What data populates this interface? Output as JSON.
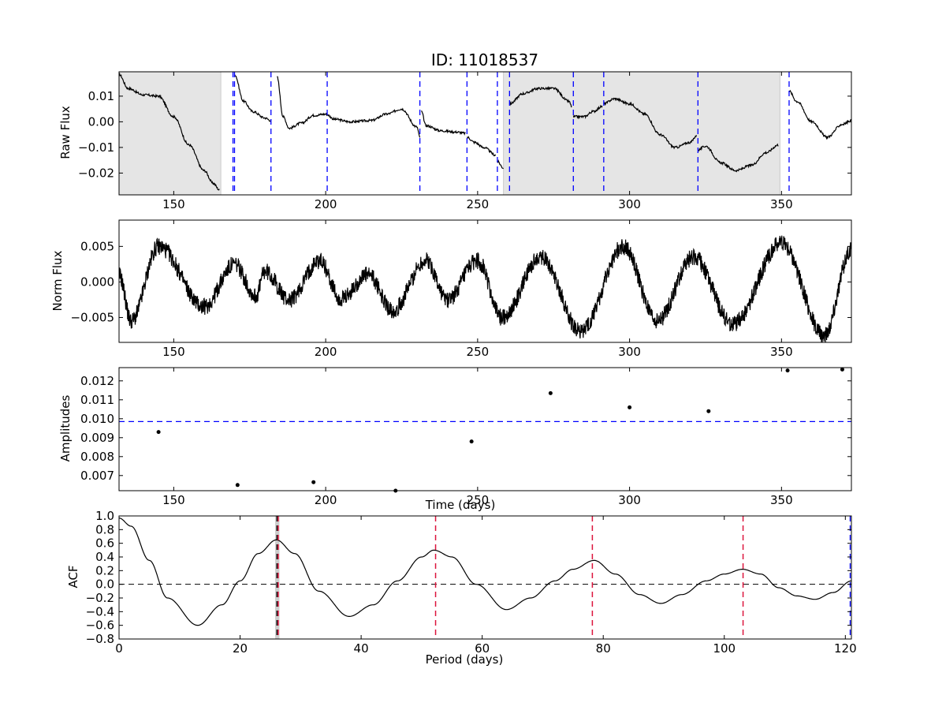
{
  "chart_data": [
    {
      "panel": "raw_flux",
      "type": "line",
      "title": "ID: 11018537",
      "ylabel": "Raw Flux",
      "xlabel": "",
      "xlim": [
        132,
        373
      ],
      "ylim": [
        -0.0285,
        0.0195
      ],
      "xticks": [
        150,
        200,
        250,
        300,
        350
      ],
      "yticks": [
        0.01,
        0.0,
        -0.01,
        -0.02
      ],
      "ytick_labels": [
        "0.01",
        "0.00",
        "−0.01",
        "−0.02"
      ],
      "shaded_spans": [
        [
          132,
          165.5
        ],
        [
          258.5,
          349.5
        ]
      ],
      "shade_color": "#e5e5e5",
      "vertical_lines": [
        169.5,
        170,
        182,
        200.5,
        231,
        246.5,
        256.5,
        260.5,
        281.5,
        291.5,
        322.5,
        352.5
      ],
      "vertical_line_color": "#0000ff",
      "segments": [
        {
          "x": [
            132,
            135,
            140,
            145,
            150,
            155,
            160,
            163,
            165
          ],
          "y": [
            0.0185,
            0.013,
            0.0105,
            0.01,
            0.002,
            -0.009,
            -0.019,
            -0.024,
            -0.0265
          ]
        },
        {
          "x": [
            170,
            173,
            176,
            180,
            182
          ],
          "y": [
            0.0185,
            0.008,
            0.004,
            0.0015,
            0.0005
          ]
        },
        {
          "x": [
            184,
            186,
            188,
            192,
            196,
            200,
            203,
            208,
            215,
            220,
            225,
            230,
            231
          ],
          "y": [
            0.0175,
            0.002,
            -0.0025,
            -0.0005,
            0.0025,
            0.003,
            0.001,
            -0.0,
            0.0005,
            0.003,
            0.005,
            -0.002,
            -0.006
          ]
        },
        {
          "x": [
            231.5,
            233,
            238,
            243,
            246
          ],
          "y": [
            0.004,
            -0.0015,
            -0.0035,
            -0.004,
            -0.0045
          ]
        },
        {
          "x": [
            246.5,
            249,
            252,
            256
          ],
          "y": [
            -0.006,
            -0.008,
            -0.01,
            -0.013
          ]
        },
        {
          "x": [
            256.5,
            258.5
          ],
          "y": [
            -0.0155,
            -0.018
          ]
        },
        {
          "x": [
            260.5,
            265,
            270,
            275,
            280,
            281
          ],
          "y": [
            0.007,
            0.011,
            0.013,
            0.013,
            0.008,
            0.006
          ]
        },
        {
          "x": [
            281.5,
            285,
            288,
            291
          ],
          "y": [
            0.002,
            0.002,
            0.004,
            0.006
          ]
        },
        {
          "x": [
            291.5,
            295,
            300,
            305,
            310,
            315,
            320,
            322
          ],
          "y": [
            0.007,
            0.009,
            0.007,
            0.003,
            -0.005,
            -0.01,
            -0.008,
            -0.0055
          ]
        },
        {
          "x": [
            322.5,
            325,
            330,
            335,
            340,
            345,
            349
          ],
          "y": [
            -0.011,
            -0.0095,
            -0.016,
            -0.019,
            -0.017,
            -0.012,
            -0.009
          ]
        },
        {
          "x": [
            352.5,
            355,
            360,
            365,
            370,
            373
          ],
          "y": [
            0.012,
            0.008,
            0.0,
            -0.006,
            -0.001,
            0.0005
          ]
        }
      ]
    },
    {
      "panel": "norm_flux",
      "type": "line",
      "ylabel": "Norm Flux",
      "xlabel": "",
      "xlim": [
        132,
        373
      ],
      "ylim": [
        -0.0085,
        0.0087
      ],
      "xticks": [
        150,
        200,
        250,
        300,
        350
      ],
      "yticks": [
        0.005,
        0.0,
        -0.005
      ],
      "ytick_labels": [
        "0.005",
        "0.000",
        "−0.005"
      ],
      "shape": {
        "minima_x": [
          136,
          160,
          177,
          188,
          205,
          222,
          240,
          258,
          284,
          309,
          334,
          364
        ],
        "minima_y": [
          -0.0055,
          -0.0035,
          -0.002,
          -0.0025,
          -0.0025,
          -0.004,
          -0.0025,
          -0.005,
          -0.007,
          -0.0055,
          -0.006,
          -0.0075
        ],
        "maxima_x": [
          145,
          170,
          180,
          198,
          214,
          233,
          250,
          271,
          298,
          321,
          350
        ],
        "maxima_y": [
          0.005,
          0.0025,
          0.0015,
          0.003,
          0.001,
          0.003,
          0.003,
          0.0035,
          0.005,
          0.0035,
          0.0055
        ],
        "noise_amplitude": 0.0012
      }
    },
    {
      "panel": "amplitudes",
      "type": "scatter",
      "ylabel": "Amplitudes",
      "xlabel": "Time (days)",
      "xlim": [
        132,
        373
      ],
      "ylim": [
        0.0062,
        0.0127
      ],
      "xticks": [
        150,
        200,
        250,
        300,
        350
      ],
      "yticks": [
        0.007,
        0.008,
        0.009,
        0.01,
        0.011,
        0.012
      ],
      "ytick_labels": [
        "0.007",
        "0.008",
        "0.009",
        "0.010",
        "0.011",
        "0.012"
      ],
      "x": [
        145,
        171,
        196,
        223,
        248,
        274,
        300,
        326,
        352,
        370
      ],
      "y": [
        0.0093,
        0.0065,
        0.00665,
        0.0062,
        0.0088,
        0.01135,
        0.0106,
        0.0104,
        0.01255,
        0.0126
      ],
      "hline": 0.00985,
      "hline_color": "#0000ff"
    },
    {
      "panel": "acf",
      "type": "line",
      "ylabel": "ACF",
      "xlabel": "Period (days)",
      "xlim": [
        0,
        121
      ],
      "ylim": [
        -0.8,
        1.0
      ],
      "xticks": [
        0,
        20,
        40,
        60,
        80,
        100,
        120
      ],
      "yticks": [
        1.0,
        0.8,
        0.6,
        0.4,
        0.2,
        0.0,
        -0.2,
        -0.4,
        -0.6,
        -0.8
      ],
      "ytick_labels": [
        "1.0",
        "0.8",
        "0.6",
        "0.4",
        "0.2",
        "0.0",
        "−0.2",
        "−0.4",
        "−0.6",
        "−0.8"
      ],
      "x": [
        0,
        2,
        5,
        8,
        13,
        17,
        20,
        23,
        26,
        29,
        33,
        38,
        42,
        46,
        50,
        52,
        55,
        59,
        64,
        68,
        72,
        75,
        78.5,
        82,
        86,
        89.5,
        93,
        97,
        100,
        103,
        106,
        109,
        112,
        115,
        118,
        121
      ],
      "y": [
        0.97,
        0.85,
        0.35,
        -0.2,
        -0.6,
        -0.3,
        0.05,
        0.45,
        0.65,
        0.45,
        -0.1,
        -0.47,
        -0.3,
        0.05,
        0.4,
        0.5,
        0.4,
        0.0,
        -0.37,
        -0.2,
        0.05,
        0.22,
        0.35,
        0.15,
        -0.15,
        -0.28,
        -0.15,
        0.05,
        0.15,
        0.22,
        0.15,
        -0.05,
        -0.17,
        -0.22,
        -0.12,
        0.05
      ],
      "zero_line": 0.0,
      "shaded_span": [
        25.8,
        26.5
      ],
      "black_dashed_x": 26.1,
      "red_dashed_x": [
        26.3,
        52.3,
        78.2,
        103.1
      ],
      "red_color": "#dc143c",
      "blue_line_x": 120.8
    }
  ]
}
